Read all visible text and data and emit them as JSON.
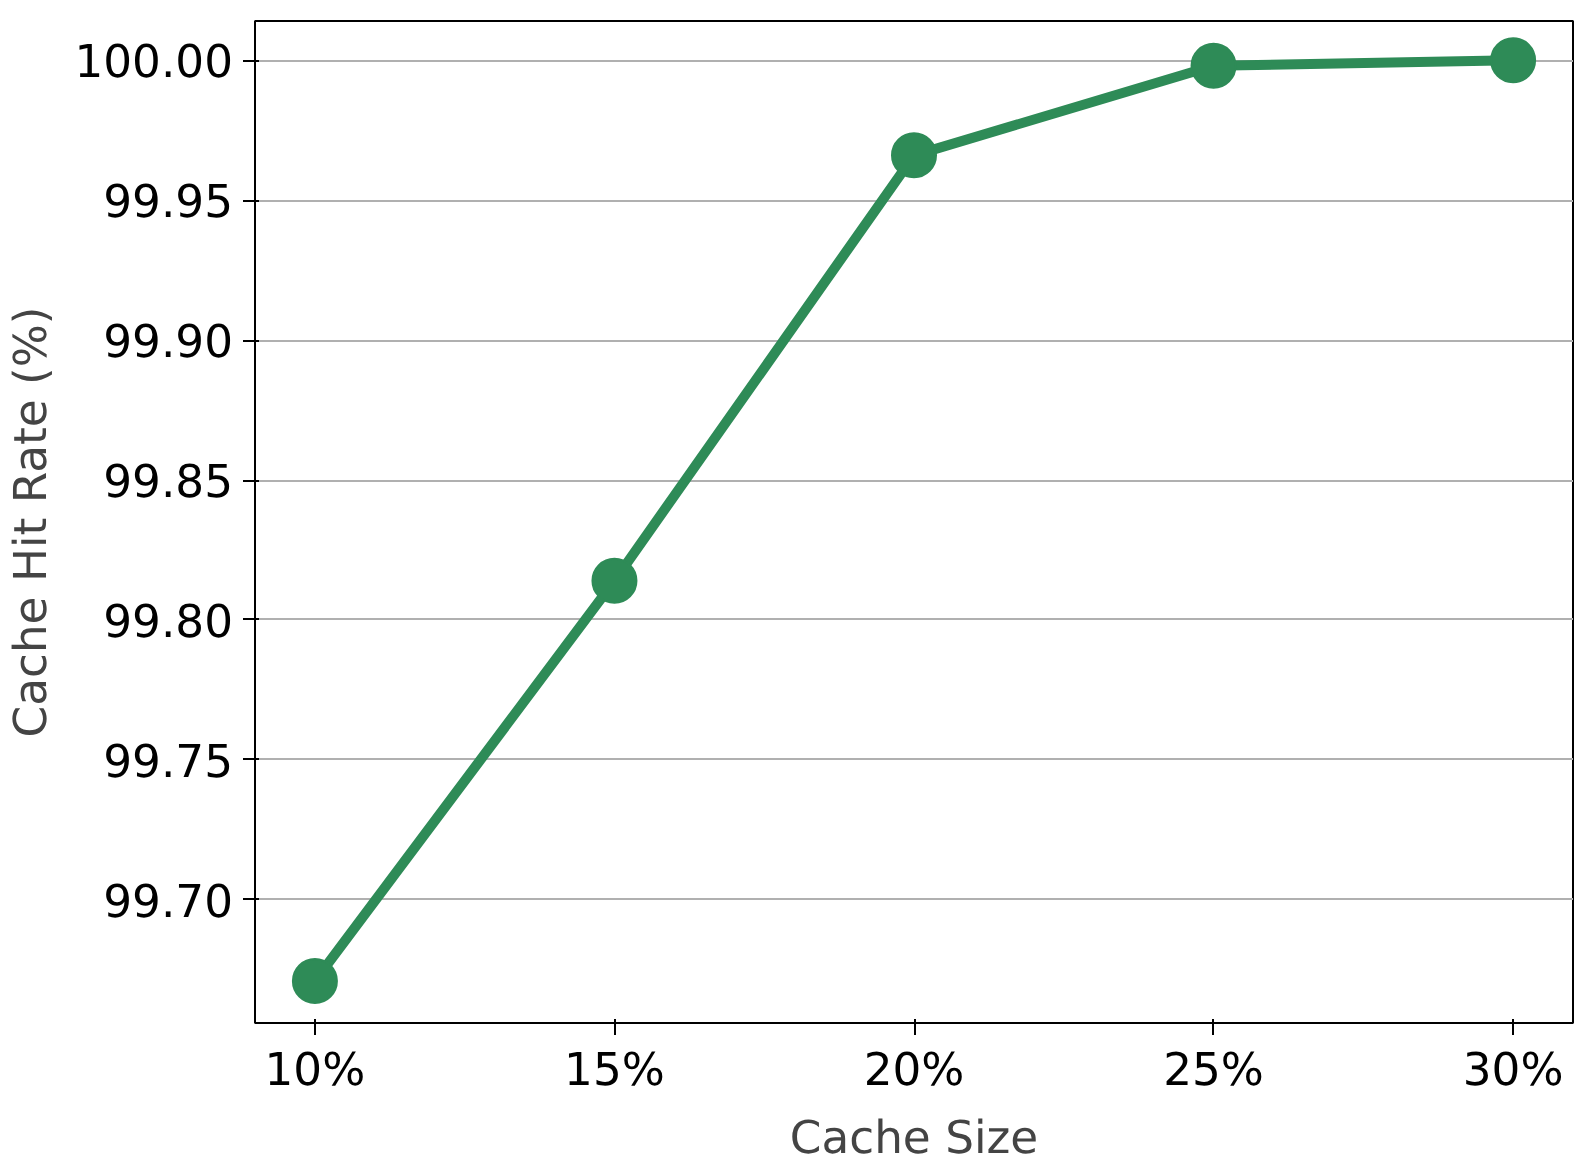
{
  "chart_data": {
    "type": "line",
    "xlabel": "Cache Size",
    "ylabel": "Cache Hit Rate (%)",
    "x": [
      10,
      15,
      20,
      25,
      30
    ],
    "series": [
      {
        "color": "#2e8b57",
        "values": [
          99.671,
          99.814,
          99.966,
          99.998,
          100.0
        ]
      }
    ],
    "xlim": [
      9,
      31
    ],
    "ylim": [
      99.656,
      100.014
    ],
    "xticks": [
      {
        "value": 10,
        "label": "10%"
      },
      {
        "value": 15,
        "label": "15%"
      },
      {
        "value": 20,
        "label": "20%"
      },
      {
        "value": 25,
        "label": "25%"
      },
      {
        "value": 30,
        "label": "30%"
      }
    ],
    "yticks": [
      {
        "value": 99.7,
        "label": "99.70"
      },
      {
        "value": 99.75,
        "label": "99.75"
      },
      {
        "value": 99.8,
        "label": "99.80"
      },
      {
        "value": 99.85,
        "label": "99.85"
      },
      {
        "value": 99.9,
        "label": "99.90"
      },
      {
        "value": 99.95,
        "label": "99.95"
      },
      {
        "value": 100.0,
        "label": "100.00"
      }
    ],
    "grid": "y",
    "marker": "circle",
    "line_style": "solid"
  }
}
